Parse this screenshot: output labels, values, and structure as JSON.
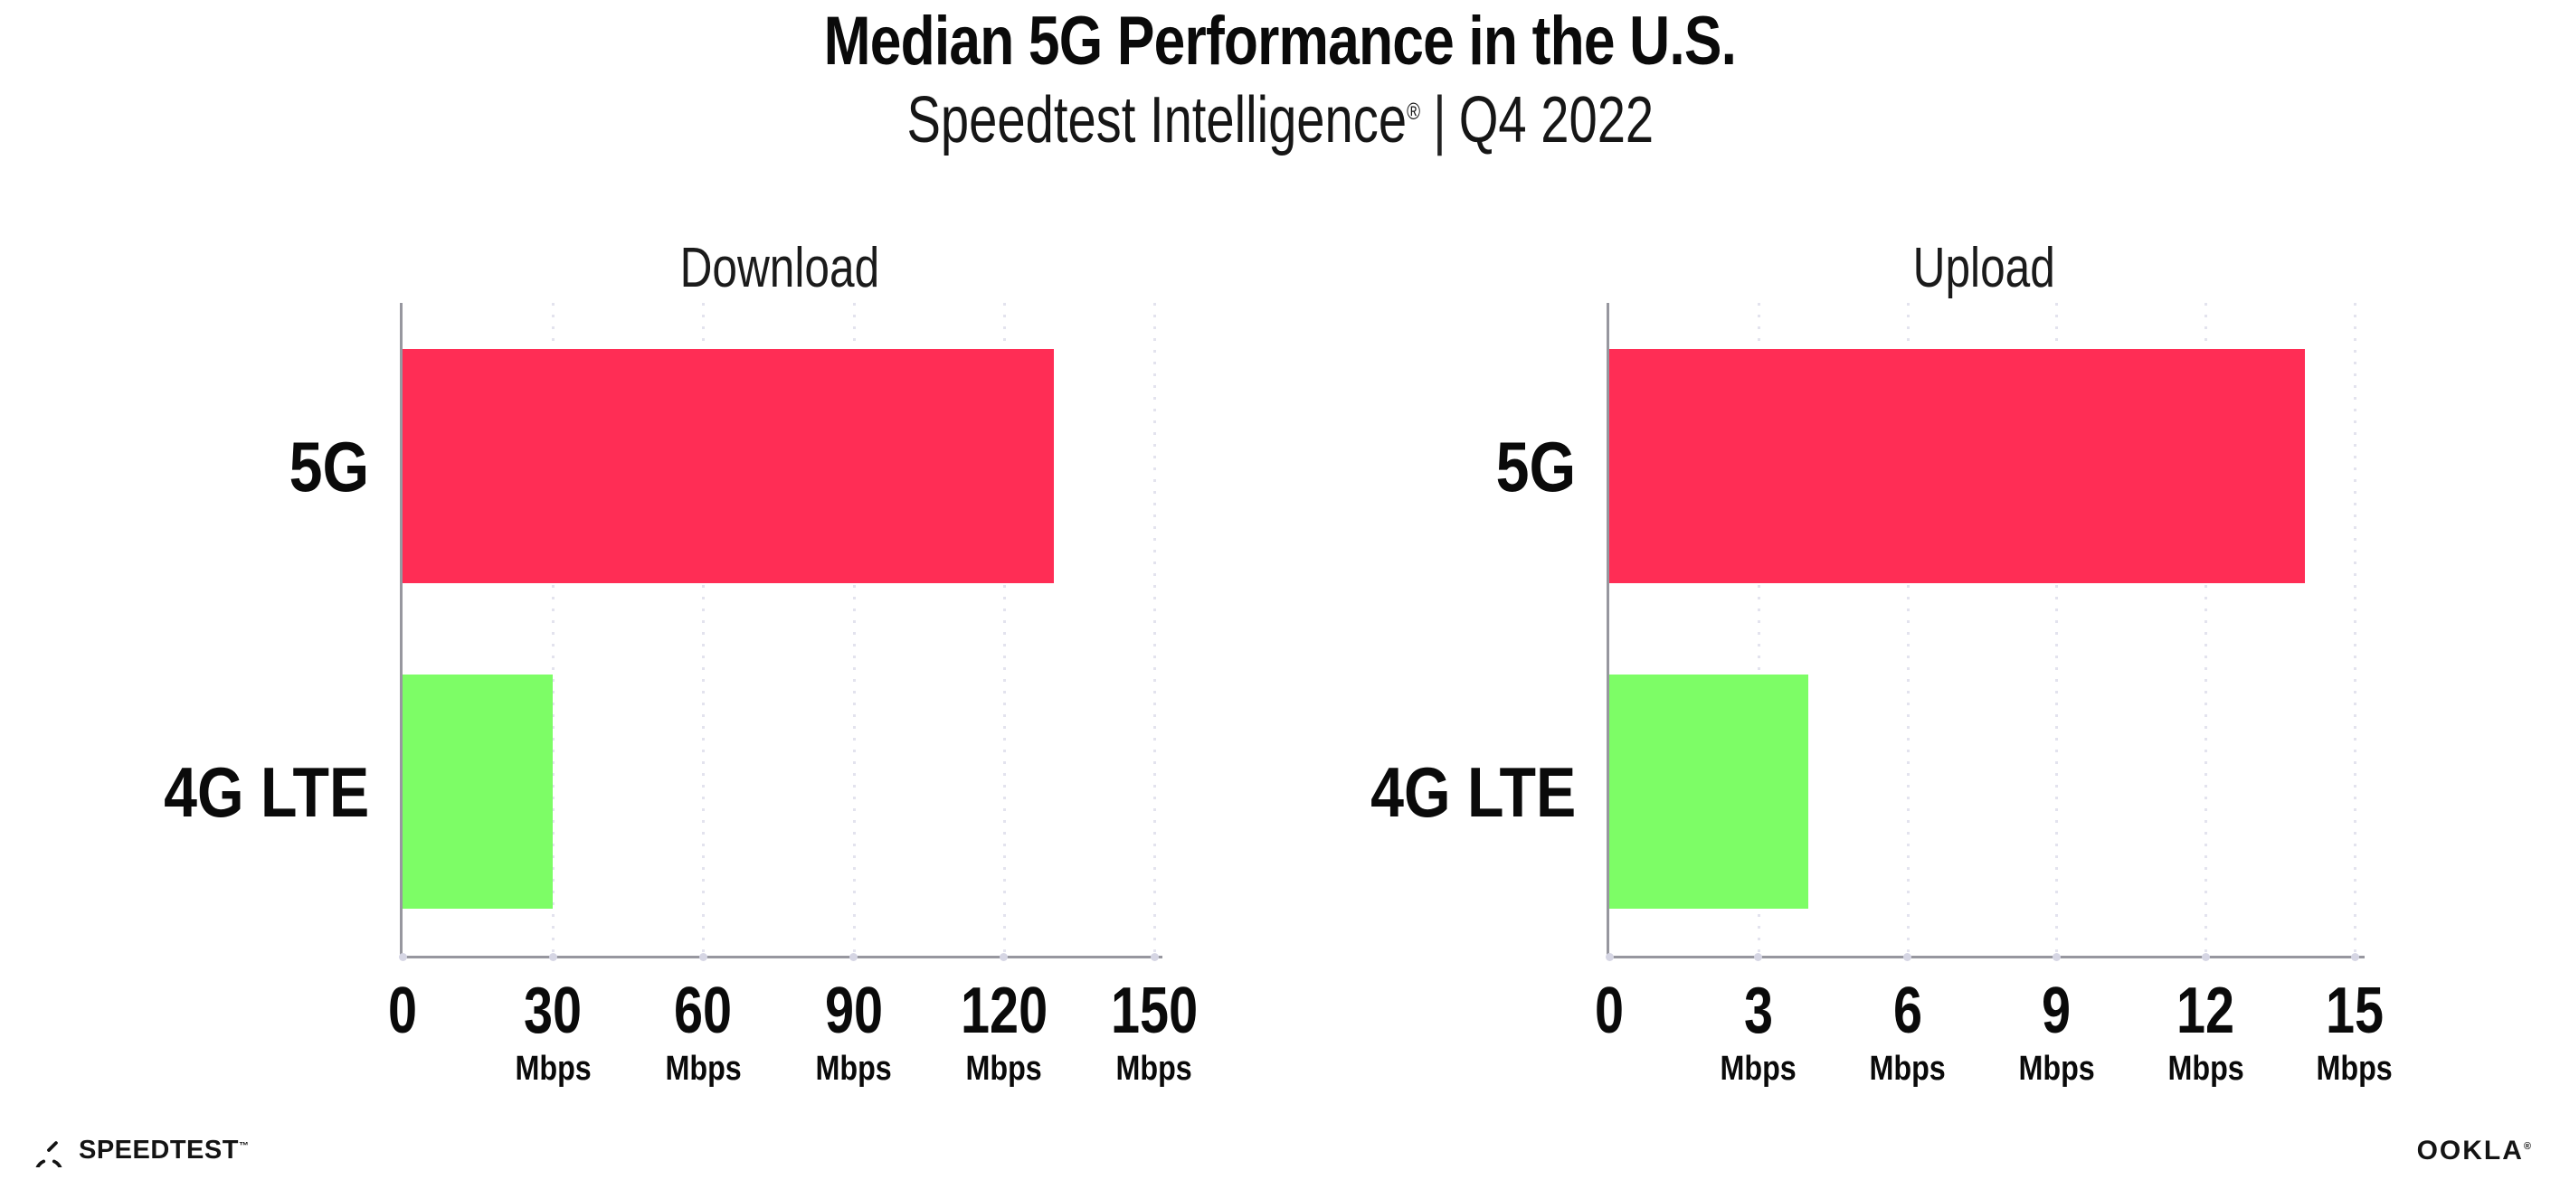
{
  "header": {
    "title": "Median 5G Performance in the U.S.",
    "subtitle": {
      "brand": "Speedtest Intelligence",
      "reg": "®",
      "sep": "|",
      "period": "Q4 2022"
    }
  },
  "chart_data": [
    {
      "type": "bar",
      "orientation": "horizontal",
      "title": "Download",
      "categories": [
        "5G",
        "4G LTE"
      ],
      "values": [
        130,
        30
      ],
      "value_unit": "Mbps",
      "xlim": [
        0,
        150
      ],
      "xticks": [
        0,
        30,
        60,
        90,
        120,
        150
      ],
      "tick_unit_label": "Mbps",
      "unit_label_on_zero_tick": false,
      "grid": "dotted-vertical",
      "legend": "none",
      "bar_colors": [
        "#FF2D55",
        "#7DFD66"
      ]
    },
    {
      "type": "bar",
      "orientation": "horizontal",
      "title": "Upload",
      "categories": [
        "5G",
        "4G LTE"
      ],
      "values": [
        14,
        4
      ],
      "value_unit": "Mbps",
      "xlim": [
        0,
        15
      ],
      "xticks": [
        0,
        3,
        6,
        9,
        12,
        15
      ],
      "tick_unit_label": "Mbps",
      "unit_label_on_zero_tick": false,
      "grid": "dotted-vertical",
      "legend": "none",
      "bar_colors": [
        "#FF2D55",
        "#7DFD66"
      ]
    }
  ],
  "colors": {
    "bar_5g": "#FF2D55",
    "bar_4g_lte": "#7DFD66",
    "axis": "#97979f",
    "gridline": "#e3e3ee"
  },
  "footer": {
    "speedtest_wordmark": "SPEEDTEST",
    "speedtest_tm": "™",
    "ookla_wordmark": "OOKLA",
    "ookla_reg": "®"
  }
}
